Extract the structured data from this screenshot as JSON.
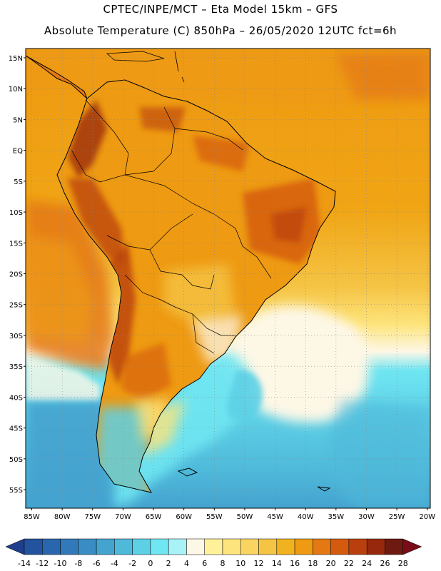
{
  "header": {
    "line1": "CPTEC/INPE/MCT –  Eta Model 15km – GFS",
    "line2": "Absolute Temperature (C) 850hPa – 26/05/2020 12UTC fct=6h"
  },
  "axes": {
    "lat_labels": [
      "15N",
      "10N",
      "5N",
      "EQ",
      "5S",
      "10S",
      "15S",
      "20S",
      "25S",
      "30S",
      "35S",
      "40S",
      "45S",
      "50S",
      "55S"
    ],
    "lat_values": [
      15,
      10,
      5,
      0,
      -5,
      -10,
      -15,
      -20,
      -25,
      -30,
      -35,
      -40,
      -45,
      -50,
      -55
    ],
    "lon_labels": [
      "85W",
      "80W",
      "75W",
      "70W",
      "65W",
      "60W",
      "55W",
      "50W",
      "45W",
      "40W",
      "35W",
      "30W",
      "25W",
      "20W"
    ],
    "lon_values": [
      -85,
      -80,
      -75,
      -70,
      -65,
      -60,
      -55,
      -50,
      -45,
      -40,
      -35,
      -30,
      -25,
      -20
    ],
    "lat_range": [
      -58,
      16.5
    ],
    "lon_range": [
      -86,
      -19.5
    ],
    "grid": "dotted"
  },
  "colorbar": {
    "labels": [
      "-14",
      "-12",
      "-10",
      "-8",
      "-6",
      "-4",
      "-2",
      "0",
      "2",
      "4",
      "6",
      "8",
      "10",
      "12",
      "14",
      "16",
      "18",
      "20",
      "22",
      "24",
      "26",
      "28"
    ],
    "colors": [
      "#1f3e8c",
      "#23529e",
      "#2a66ad",
      "#3279b9",
      "#3a8dc4",
      "#44a3cf",
      "#4fb9da",
      "#5dd0e6",
      "#70e6f2",
      "#a8f2f8",
      "#fdf7e6",
      "#fff19a",
      "#fde47c",
      "#f9d460",
      "#f5c445",
      "#f0b21e",
      "#ee9a12",
      "#e47812",
      "#d45a10",
      "#b9400e",
      "#97280e",
      "#6e1a10",
      "#7a0c1a"
    ]
  }
}
